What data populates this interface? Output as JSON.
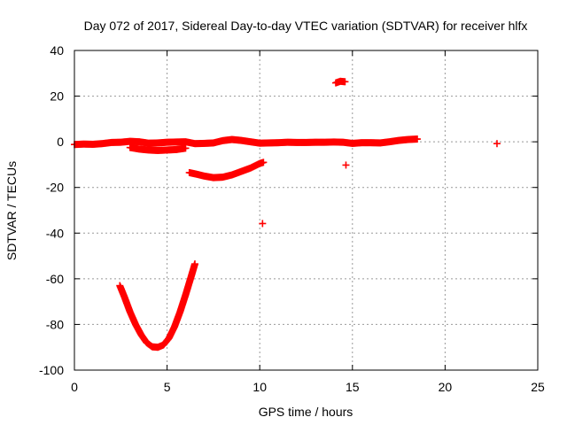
{
  "chart_data": {
    "type": "scatter",
    "title": "Day 072 of 2017, Sidereal Day-to-day VTEC variation (SDTVAR) for receiver hlfx",
    "xlabel": "GPS time / hours",
    "ylabel": "SDTVAR / TECUs",
    "xlim": [
      0,
      25
    ],
    "ylim": [
      -100,
      40
    ],
    "xticks": [
      0,
      5,
      10,
      15,
      20,
      25
    ],
    "yticks": [
      -100,
      -80,
      -60,
      -40,
      -20,
      0,
      20,
      40
    ],
    "grid": true,
    "legend": "none",
    "marker": "plus",
    "color": "#ff0000",
    "series": [
      {
        "segments": [
          [
            [
              0.0,
              -1.2
            ],
            [
              0.5,
              -1.0
            ],
            [
              1.0,
              -1.1
            ],
            [
              1.5,
              -0.8
            ],
            [
              2.0,
              -0.3
            ],
            [
              2.5,
              -0.2
            ],
            [
              3.0,
              0.2
            ],
            [
              3.5,
              0.0
            ],
            [
              4.0,
              -0.6
            ],
            [
              4.5,
              -0.5
            ],
            [
              5.0,
              -0.2
            ],
            [
              5.5,
              -0.1
            ],
            [
              6.0,
              0.0
            ],
            [
              6.5,
              -0.8
            ],
            [
              7.0,
              -0.7
            ],
            [
              7.5,
              -0.5
            ],
            [
              8.0,
              0.5
            ],
            [
              8.5,
              1.0
            ],
            [
              9.0,
              0.6
            ],
            [
              9.5,
              0.0
            ],
            [
              10.0,
              -0.6
            ],
            [
              10.5,
              -0.5
            ],
            [
              11.0,
              -0.4
            ],
            [
              11.5,
              -0.2
            ],
            [
              12.0,
              -0.3
            ],
            [
              12.5,
              -0.3
            ],
            [
              13.0,
              -0.2
            ],
            [
              13.5,
              -0.2
            ],
            [
              14.0,
              -0.1
            ],
            [
              14.5,
              -0.2
            ],
            [
              15.0,
              -0.7
            ],
            [
              15.5,
              -0.4
            ],
            [
              16.0,
              -0.4
            ],
            [
              16.5,
              -0.5
            ],
            [
              17.0,
              0.0
            ],
            [
              17.5,
              0.6
            ],
            [
              18.0,
              1.0
            ],
            [
              18.5,
              1.2
            ]
          ],
          [
            [
              3.0,
              -2.5
            ],
            [
              3.5,
              -3.2
            ],
            [
              4.0,
              -3.6
            ],
            [
              4.5,
              -3.8
            ],
            [
              5.0,
              -3.6
            ],
            [
              5.5,
              -3.4
            ],
            [
              6.0,
              -2.8
            ]
          ],
          [
            [
              6.2,
              -13.5
            ],
            [
              6.6,
              -14.2
            ],
            [
              7.0,
              -15.0
            ],
            [
              7.5,
              -15.7
            ],
            [
              8.0,
              -15.5
            ],
            [
              8.5,
              -14.5
            ],
            [
              9.0,
              -13.0
            ],
            [
              9.5,
              -11.5
            ],
            [
              10.0,
              -9.5
            ],
            [
              10.2,
              -9.0
            ]
          ],
          [
            [
              2.45,
              -63.0
            ],
            [
              2.7,
              -68.0
            ],
            [
              3.0,
              -74.5
            ],
            [
              3.3,
              -80.0
            ],
            [
              3.6,
              -84.5
            ],
            [
              3.9,
              -88.0
            ],
            [
              4.2,
              -89.8
            ],
            [
              4.5,
              -90.0
            ],
            [
              4.8,
              -89.0
            ],
            [
              5.1,
              -86.0
            ],
            [
              5.4,
              -81.0
            ],
            [
              5.7,
              -74.5
            ],
            [
              6.0,
              -67.0
            ],
            [
              6.3,
              -59.0
            ],
            [
              6.5,
              -53.5
            ]
          ],
          [
            [
              10.15,
              -35.8
            ]
          ],
          [
            [
              14.1,
              25.8
            ],
            [
              14.35,
              26.5
            ],
            [
              14.6,
              26.3
            ]
          ],
          [
            [
              14.65,
              -10.2
            ]
          ],
          [
            [
              22.8,
              -0.8
            ]
          ]
        ]
      }
    ]
  }
}
